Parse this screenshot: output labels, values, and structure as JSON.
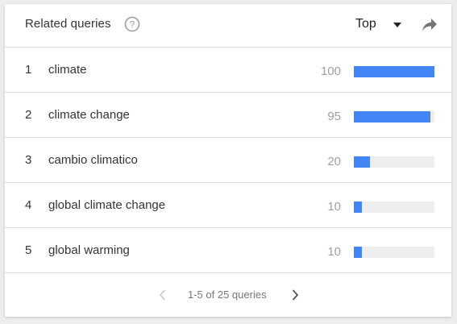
{
  "header": {
    "title": "Related queries",
    "help_icon": "help-circle-icon",
    "select": {
      "value": "Top",
      "icon": "caret-down-icon"
    },
    "share_icon": "share-arrow-icon"
  },
  "rows": [
    {
      "rank": "1",
      "query": "climate",
      "value": "100",
      "bar_fraction": 1.0
    },
    {
      "rank": "2",
      "query": "climate change",
      "value": "95",
      "bar_fraction": 0.95
    },
    {
      "rank": "3",
      "query": "cambio climatico",
      "value": "20",
      "bar_fraction": 0.2
    },
    {
      "rank": "4",
      "query": "global climate change",
      "value": "10",
      "bar_fraction": 0.1
    },
    {
      "rank": "5",
      "query": "global warming",
      "value": "10",
      "bar_fraction": 0.1
    }
  ],
  "pager": {
    "text": "1-5 of 25 queries",
    "prev_icon": "chevron-left-icon",
    "next_icon": "chevron-right-icon"
  },
  "colors": {
    "bar": "#4285f4",
    "bar_track": "#eeeeee",
    "value_text": "#9e9e9e",
    "text": "#333333"
  }
}
